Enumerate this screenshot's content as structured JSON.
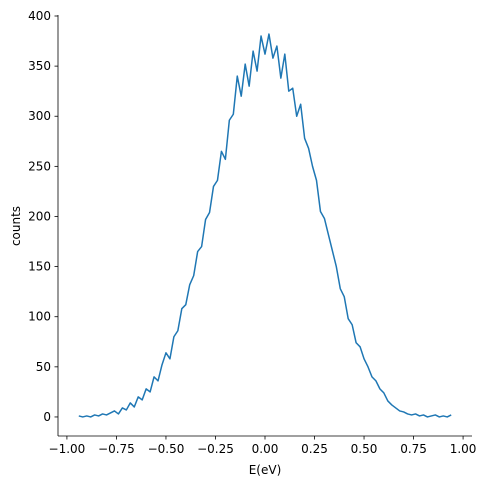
{
  "chart_data": {
    "type": "line",
    "xlabel": "E(eV)",
    "ylabel": "counts",
    "x": [
      -0.94,
      -0.92,
      -0.9,
      -0.88,
      -0.86,
      -0.84,
      -0.82,
      -0.8,
      -0.78,
      -0.76,
      -0.74,
      -0.72,
      -0.7,
      -0.68,
      -0.66,
      -0.64,
      -0.62,
      -0.6,
      -0.58,
      -0.56,
      -0.54,
      -0.52,
      -0.5,
      -0.48,
      -0.46,
      -0.44,
      -0.42,
      -0.4,
      -0.38,
      -0.36,
      -0.34,
      -0.32,
      -0.3,
      -0.28,
      -0.26,
      -0.24,
      -0.22,
      -0.2,
      -0.18,
      -0.16,
      -0.14,
      -0.12,
      -0.1,
      -0.08,
      -0.06,
      -0.04,
      -0.02,
      0,
      0.02,
      0.04,
      0.06,
      0.08,
      0.1,
      0.12,
      0.14,
      0.16,
      0.18,
      0.2,
      0.22,
      0.24,
      0.26,
      0.28,
      0.3,
      0.32,
      0.34,
      0.36,
      0.38,
      0.4,
      0.42,
      0.44,
      0.46,
      0.48,
      0.5,
      0.52,
      0.54,
      0.56,
      0.58,
      0.6,
      0.62,
      0.64,
      0.66,
      0.68,
      0.7,
      0.72,
      0.74,
      0.76,
      0.78,
      0.8,
      0.82,
      0.84,
      0.86,
      0.88,
      0.9,
      0.92,
      0.94
    ],
    "series": [
      {
        "color": "#1f77b4",
        "values": [
          1,
          0,
          1,
          0,
          2,
          1,
          3,
          2,
          4,
          6,
          3,
          9,
          7,
          14,
          10,
          20,
          17,
          28,
          25,
          40,
          36,
          52,
          64,
          58,
          80,
          86,
          108,
          112,
          132,
          141,
          165,
          170,
          197,
          204,
          230,
          236,
          265,
          257,
          296,
          302,
          340,
          320,
          352,
          330,
          365,
          345,
          380,
          362,
          382,
          358,
          370,
          338,
          362,
          325,
          328,
          300,
          312,
          278,
          268,
          250,
          236,
          205,
          198,
          182,
          166,
          150,
          128,
          120,
          98,
          92,
          74,
          70,
          58,
          50,
          40,
          36,
          28,
          24,
          16,
          12,
          9,
          6,
          5,
          3,
          2,
          3,
          1,
          2,
          0,
          1,
          2,
          0,
          1,
          0,
          2
        ]
      }
    ],
    "xlim": [
      -1.045,
      1.045
    ],
    "xticks": [
      {
        "value": -1,
        "label": "−1.00"
      },
      {
        "value": -0.75,
        "label": "−0.75"
      },
      {
        "value": -0.5,
        "label": "−0.50"
      },
      {
        "value": -0.25,
        "label": "−0.25"
      },
      {
        "value": 0,
        "label": "0.00"
      },
      {
        "value": 0.25,
        "label": "0.25"
      },
      {
        "value": 0.5,
        "label": "0.50"
      },
      {
        "value": 0.75,
        "label": "0.75"
      },
      {
        "value": 1,
        "label": "1.00"
      }
    ],
    "ylim": [
      -19,
      401
    ],
    "yticks": [
      0,
      50,
      100,
      150,
      200,
      250,
      300,
      350,
      400
    ]
  }
}
